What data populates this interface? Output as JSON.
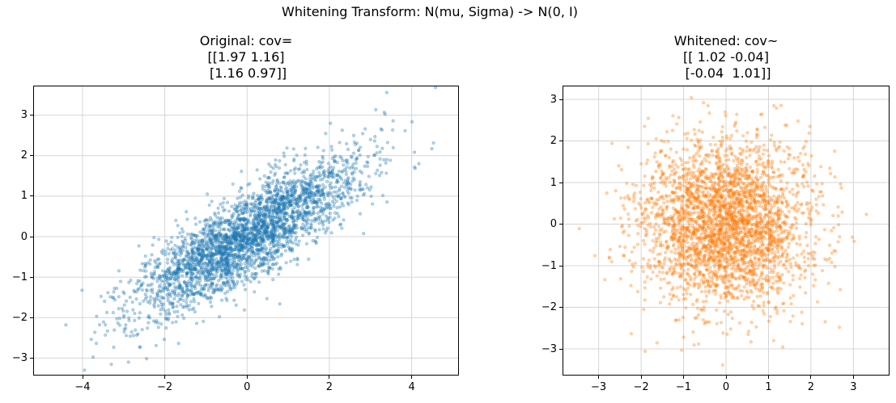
{
  "figure": {
    "suptitle": "Whitening Transform: N(mu, Sigma) -> N(0, I)",
    "background": "#ffffff",
    "grid_color": "#d5d5d5",
    "spine_color": "#000000"
  },
  "chart_data": [
    {
      "type": "scatter",
      "panel": "original",
      "title_lines": [
        "Original: cov=",
        "[[1.97 1.16]",
        " [1.16 0.97]]"
      ],
      "color": "#1f77b4",
      "marker": {
        "alpha": 0.3,
        "radius_px": 1.7
      },
      "n_points": 3000,
      "mean": [
        0,
        0
      ],
      "cov": [
        [
          1.97,
          1.16
        ],
        [
          1.16,
          0.97
        ]
      ],
      "xlim": [
        -5.2,
        5.15
      ],
      "ylim": [
        -3.43,
        3.73
      ],
      "xticks": [
        -4,
        -2,
        0,
        2,
        4
      ],
      "xtick_labels": [
        "−4",
        "−2",
        "0",
        "2",
        "4"
      ],
      "yticks": [
        3,
        2,
        1,
        0,
        -1,
        -2,
        -3
      ],
      "ytick_labels": [
        "3",
        "2",
        "1",
        "0",
        "−1",
        "−2",
        "−3"
      ],
      "grid": true,
      "legend": null
    },
    {
      "type": "scatter",
      "panel": "whitened",
      "title_lines": [
        "Whitened: cov~",
        "[[ 1.02 -0.04]",
        " [-0.04  1.01]]"
      ],
      "color": "#ff7f0e",
      "marker": {
        "alpha": 0.3,
        "radius_px": 1.7
      },
      "n_points": 3000,
      "mean": [
        0,
        0
      ],
      "cov": [
        [
          1.02,
          -0.04
        ],
        [
          -0.04,
          1.01
        ]
      ],
      "xlim": [
        -3.85,
        3.85
      ],
      "ylim": [
        -3.64,
        3.33
      ],
      "xticks": [
        -3,
        -2,
        -1,
        0,
        1,
        2,
        3
      ],
      "xtick_labels": [
        "−3",
        "−2",
        "−1",
        "0",
        "1",
        "2",
        "3"
      ],
      "yticks": [
        3,
        2,
        1,
        0,
        -1,
        -2,
        -3
      ],
      "ytick_labels": [
        "3",
        "2",
        "1",
        "0",
        "−1",
        "−2",
        "−3"
      ],
      "grid": true,
      "legend": null
    }
  ]
}
